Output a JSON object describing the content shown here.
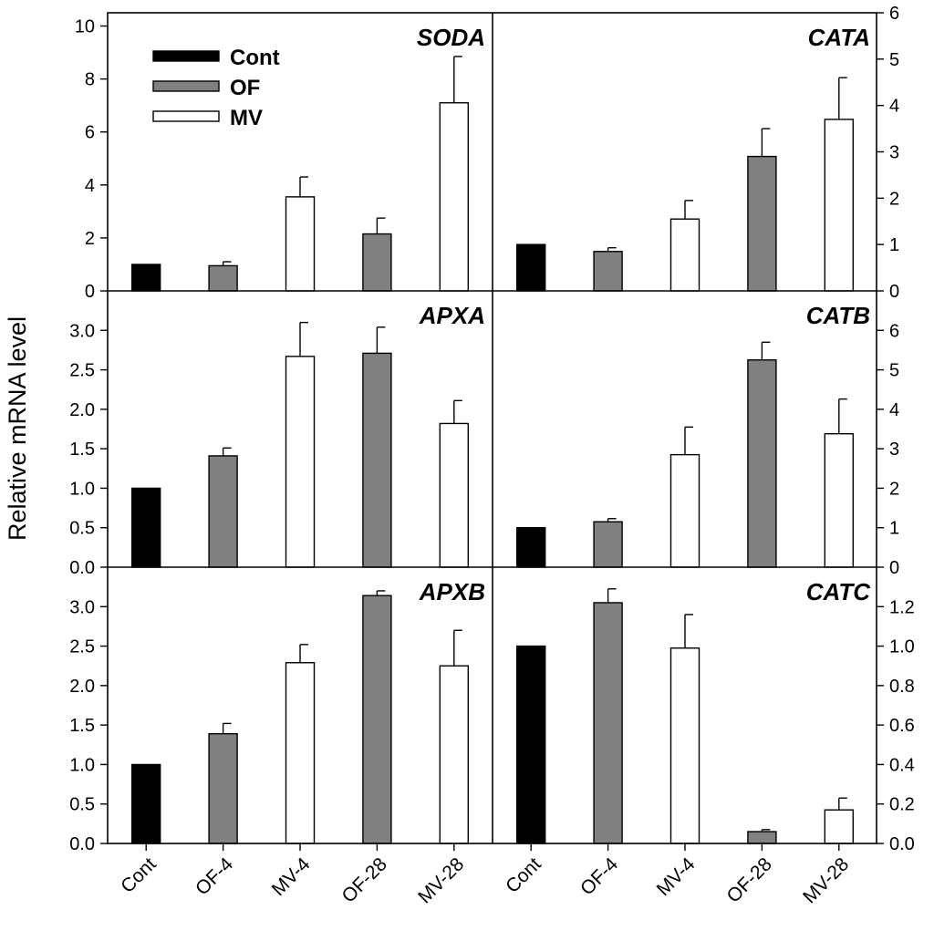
{
  "ylabel": "Relative mRNA level",
  "legend": [
    {
      "name": "Cont",
      "color": "#000000"
    },
    {
      "name": "OF",
      "color": "#808080"
    },
    {
      "name": "MV",
      "color": "#ffffff"
    }
  ],
  "categories": [
    "Cont",
    "OF-4",
    "MV-4",
    "OF-28",
    "MV-28"
  ],
  "bar_colors": [
    "#000000",
    "#808080",
    "#ffffff",
    "#808080",
    "#ffffff"
  ],
  "chart_data": [
    {
      "type": "bar",
      "title": "SODA",
      "categories": [
        "Cont",
        "OF-4",
        "MV-4",
        "OF-28",
        "MV-28"
      ],
      "values": [
        1.0,
        0.95,
        3.55,
        2.15,
        7.1
      ],
      "errors": [
        0,
        0.15,
        0.75,
        0.6,
        1.75
      ],
      "ylim": [
        0,
        10.5
      ],
      "yticks": [
        0,
        2,
        4,
        6,
        8,
        10
      ],
      "yticklabels": [
        "0",
        "2",
        "4",
        "6",
        "8",
        "10"
      ]
    },
    {
      "type": "bar",
      "title": "CATA",
      "categories": [
        "Cont",
        "OF-4",
        "MV-4",
        "OF-28",
        "MV-28"
      ],
      "values": [
        1.0,
        0.85,
        1.55,
        2.9,
        3.7
      ],
      "errors": [
        0,
        0.08,
        0.4,
        0.6,
        0.9
      ],
      "ylim": [
        0,
        6
      ],
      "yticks": [
        0,
        1,
        2,
        3,
        4,
        5,
        6
      ],
      "yticklabels": [
        "0",
        "1",
        "2",
        "3",
        "4",
        "5",
        "6"
      ]
    },
    {
      "type": "bar",
      "title": "APXA",
      "categories": [
        "Cont",
        "OF-4",
        "MV-4",
        "OF-28",
        "MV-28"
      ],
      "values": [
        1.0,
        1.41,
        2.67,
        2.71,
        1.82
      ],
      "errors": [
        0,
        0.1,
        0.43,
        0.33,
        0.29
      ],
      "ylim": [
        0,
        3.5
      ],
      "yticks": [
        0,
        0.5,
        1,
        1.5,
        2,
        2.5,
        3
      ],
      "yticklabels": [
        "0.0",
        "0.5",
        "1.0",
        "1.5",
        "2.0",
        "2.5",
        "3.0"
      ]
    },
    {
      "type": "bar",
      "title": "CATB",
      "categories": [
        "Cont",
        "OF-4",
        "MV-4",
        "OF-28",
        "MV-28"
      ],
      "values": [
        1.0,
        1.15,
        2.85,
        5.25,
        3.38
      ],
      "errors": [
        0,
        0.08,
        0.7,
        0.45,
        0.88
      ],
      "ylim": [
        0,
        7
      ],
      "yticks": [
        0,
        1,
        2,
        3,
        4,
        5,
        6
      ],
      "yticklabels": [
        "0",
        "1",
        "2",
        "3",
        "4",
        "5",
        "6"
      ]
    },
    {
      "type": "bar",
      "title": "APXB",
      "categories": [
        "Cont",
        "OF-4",
        "MV-4",
        "OF-28",
        "MV-28"
      ],
      "values": [
        1.0,
        1.39,
        2.29,
        3.14,
        2.25
      ],
      "errors": [
        0,
        0.13,
        0.23,
        0.06,
        0.45
      ],
      "ylim": [
        0,
        3.5
      ],
      "yticks": [
        0,
        0.5,
        1,
        1.5,
        2,
        2.5,
        3
      ],
      "yticklabels": [
        "0.0",
        "0.5",
        "1.0",
        "1.5",
        "2.0",
        "2.5",
        "3.0"
      ]
    },
    {
      "type": "bar",
      "title": "CATC",
      "categories": [
        "Cont",
        "OF-4",
        "MV-4",
        "OF-28",
        "MV-28"
      ],
      "values": [
        1.0,
        1.22,
        0.99,
        0.06,
        0.17
      ],
      "errors": [
        0,
        0.07,
        0.17,
        0.01,
        0.06
      ],
      "ylim": [
        0,
        1.4
      ],
      "yticks": [
        0,
        0.2,
        0.4,
        0.6,
        0.8,
        1.0,
        1.2
      ],
      "yticklabels": [
        "0.0",
        "0.2",
        "0.4",
        "0.6",
        "0.8",
        "1.0",
        "1.2"
      ]
    }
  ]
}
